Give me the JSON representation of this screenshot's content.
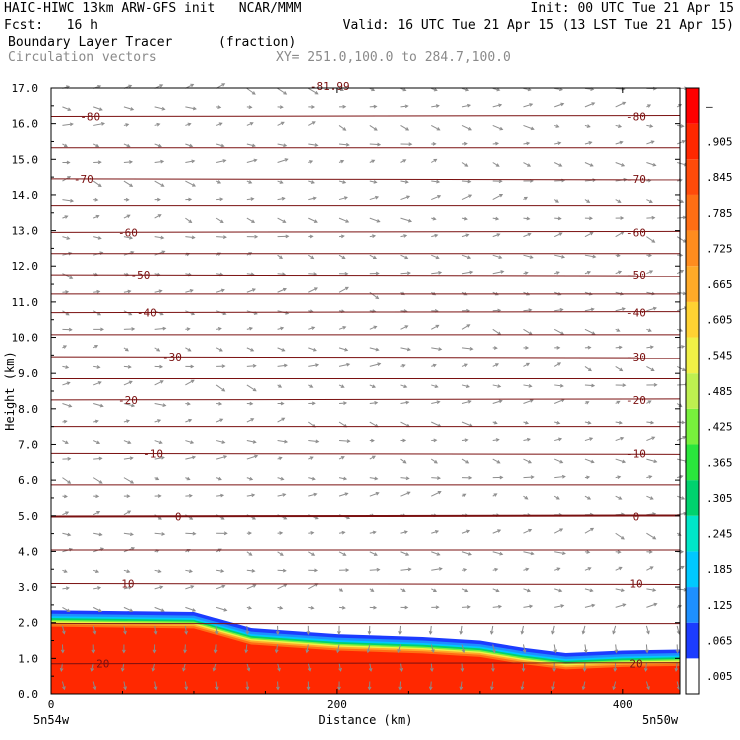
{
  "header": {
    "title_left": "HAIC-HIWC 13km ARW-GFS init   NCAR/MMM",
    "init": "Init: 00 UTC Tue 21 Apr 15",
    "fcst": "Fcst:   16 h",
    "valid": "Valid: 16 UTC Tue 21 Apr 15 (13 LST Tue 21 Apr 15)",
    "field1_name": "Boundary Layer Tracer",
    "field1_units": "(fraction)",
    "field2_name": "Circulation vectors",
    "xy_range": "XY= 251.0,100.0 to 284.7,100.0"
  },
  "chart_data": {
    "type": "heatmap",
    "title": "Boundary Layer Tracer",
    "xlabel": "Distance (km)",
    "ylabel": "Height (km)",
    "xlim": [
      0,
      440
    ],
    "ylim": [
      0,
      17
    ],
    "x_ticks": [
      "0",
      "200",
      "400"
    ],
    "x_endpoints": [
      "5n54w",
      "5n50w"
    ],
    "y_ticks": [
      "0.0",
      "1.0",
      "2.0",
      "3.0",
      "4.0",
      "5.0",
      "6.0",
      "7.0",
      "8.0",
      "9.0",
      "10.0",
      "11.0",
      "12.0",
      "13.0",
      "14.0",
      "15.0",
      "16.0",
      "17.0"
    ],
    "tracer_top_km": [
      [
        0,
        2.35
      ],
      [
        100,
        2.3
      ],
      [
        140,
        1.85
      ],
      [
        200,
        1.68
      ],
      [
        260,
        1.6
      ],
      [
        300,
        1.5
      ],
      [
        330,
        1.3
      ],
      [
        360,
        1.15
      ],
      [
        400,
        1.22
      ],
      [
        440,
        1.25
      ]
    ],
    "temperature_contours_C": [
      {
        "value": 20,
        "height_km": 0.85,
        "label": "20"
      },
      {
        "value": 10,
        "height_km": 3.1,
        "label": "10"
      },
      {
        "value": 0,
        "height_km": 4.98,
        "label": "0"
      },
      {
        "value": -10,
        "height_km": 6.75,
        "label": "-10"
      },
      {
        "value": -20,
        "height_km": 8.25,
        "label": "-20"
      },
      {
        "value": -30,
        "height_km": 9.45,
        "label": "-30"
      },
      {
        "value": -40,
        "height_km": 10.7,
        "label": "-40"
      },
      {
        "value": -50,
        "height_km": 11.75,
        "label": "-50"
      },
      {
        "value": -60,
        "height_km": 12.95,
        "label": "-60"
      },
      {
        "value": -70,
        "height_km": 14.45,
        "label": "-70"
      },
      {
        "value": -80,
        "height_km": 16.2,
        "label": "-80"
      }
    ],
    "partial_top_label": "-81.99",
    "colorbar": {
      "levels": [
        ".005",
        ".065",
        ".125",
        ".185",
        ".245",
        ".305",
        ".365",
        ".425",
        ".485",
        ".545",
        ".605",
        ".665",
        ".725",
        ".785",
        ".845",
        ".905",
        "–"
      ],
      "colors": [
        "#ffffff",
        "#1c3cff",
        "#1e90ff",
        "#00c8ff",
        "#00e6c8",
        "#00d26e",
        "#2ae63c",
        "#78f03c",
        "#bef050",
        "#f0f046",
        "#ffd232",
        "#ffaa28",
        "#ff8c1e",
        "#ff6e14",
        "#ff4b0a",
        "#ff2800",
        "#ff0000"
      ]
    },
    "grid": false,
    "legend": "right colorbar"
  }
}
